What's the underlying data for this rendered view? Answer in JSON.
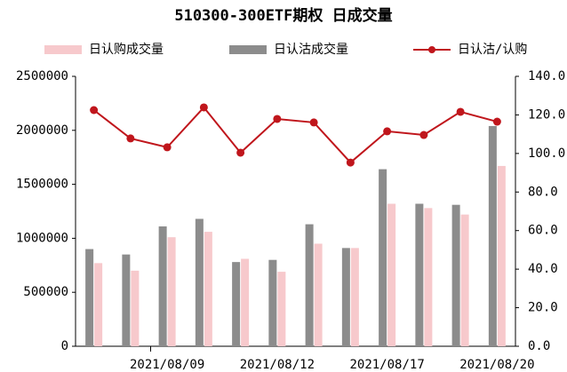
{
  "chart_data": {
    "type": "bar_line",
    "title": "510300-300ETF期权 日成交量",
    "categories": [
      null,
      null,
      "2021/08/09",
      null,
      null,
      "2021/08/12",
      null,
      null,
      "2021/08/17",
      null,
      null,
      "2021/08/20"
    ],
    "series": [
      {
        "name": "日认购成交量",
        "color": "#f7c9cc",
        "type": "bar",
        "values": [
          770000,
          700000,
          1010000,
          1060000,
          810000,
          690000,
          950000,
          910000,
          1320000,
          1280000,
          1220000,
          1670000
        ]
      },
      {
        "name": "日认沽成交量",
        "color": "#8c8c8c",
        "type": "bar",
        "values": [
          900000,
          850000,
          1110000,
          1180000,
          780000,
          800000,
          1130000,
          910000,
          1640000,
          1320000,
          1310000,
          2040000
        ]
      },
      {
        "name": "日认沽/认购",
        "color": "#c0161c",
        "type": "line",
        "axis": "y2",
        "values": [
          122.5,
          107.8,
          103.2,
          123.9,
          100.4,
          117.9,
          116.1,
          95.3,
          111.5,
          109.6,
          121.6,
          116.5
        ]
      }
    ],
    "ylim": [
      0,
      2500000
    ],
    "yticks": [
      0,
      500000,
      1000000,
      1500000,
      2000000,
      2500000
    ],
    "y2lim": [
      0,
      140
    ],
    "y2ticks": [
      {
        "value": 0,
        "label": "0.0"
      },
      {
        "value": 20,
        "label": "20.0"
      },
      {
        "value": 40,
        "label": "40.0"
      },
      {
        "value": 60,
        "label": "60.0"
      },
      {
        "value": 80,
        "label": "80.0"
      },
      {
        "value": 100,
        "label": "100.0"
      },
      {
        "value": 120,
        "label": "120.0"
      },
      {
        "value": 140,
        "label": "140.0"
      }
    ],
    "grid": false,
    "legend": "top"
  }
}
